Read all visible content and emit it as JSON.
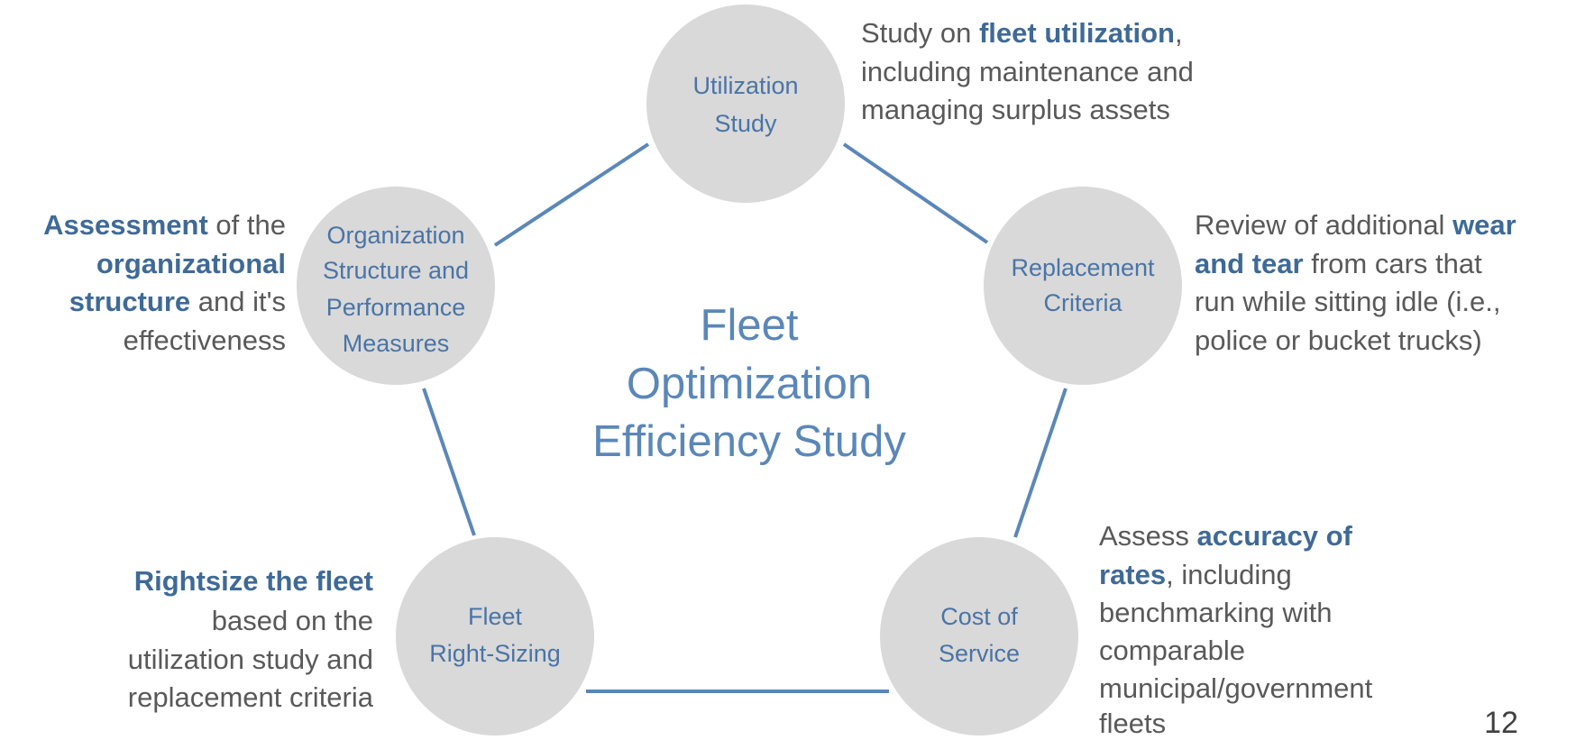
{
  "center_title": [
    "Fleet",
    "Optimization",
    "Efficiency Study"
  ],
  "nodes": [
    {
      "label": [
        "Utilization",
        "Study"
      ],
      "description": [
        [
          {
            "text": "Study on "
          },
          {
            "text": "fleet utilization",
            "bold": true
          },
          {
            "text": ","
          }
        ],
        [
          {
            "text": "including maintenance and"
          }
        ],
        [
          {
            "text": "managing surplus assets"
          }
        ]
      ]
    },
    {
      "label": [
        "Replacement",
        "Criteria"
      ],
      "description": [
        [
          {
            "text": "Review of additional "
          },
          {
            "text": "wear",
            "bold": true
          }
        ],
        [
          {
            "text": "and tear",
            "bold": true
          },
          {
            "text": " from cars that"
          }
        ],
        [
          {
            "text": "run while sitting idle (i.e.,"
          }
        ],
        [
          {
            "text": "police or bucket trucks)"
          }
        ]
      ]
    },
    {
      "label": [
        "Cost of",
        "Service"
      ],
      "description": [
        [
          {
            "text": "Assess "
          },
          {
            "text": "accuracy of",
            "bold": true
          }
        ],
        [
          {
            "text": "rates",
            "bold": true
          },
          {
            "text": ", including"
          }
        ],
        [
          {
            "text": "benchmarking with"
          }
        ],
        [
          {
            "text": "comparable"
          }
        ],
        [
          {
            "text": "municipal/government"
          }
        ],
        [
          {
            "text": "fleets"
          }
        ]
      ]
    },
    {
      "label": [
        "Fleet",
        "Right-Sizing"
      ],
      "description": [
        [
          {
            "text": "Rightsize the fleet",
            "bold": true
          }
        ],
        [
          {
            "text": "based on the"
          }
        ],
        [
          {
            "text": "utilization study and"
          }
        ],
        [
          {
            "text": "replacement criteria"
          }
        ]
      ]
    },
    {
      "label": [
        "Organization",
        "Structure and",
        "Performance",
        "Measures"
      ],
      "description": [
        [
          {
            "text": "Assessment",
            "bold": true
          },
          {
            "text": " of the"
          }
        ],
        [
          {
            "text": "organizational",
            "bold": true
          }
        ],
        [
          {
            "text": "structure",
            "bold": true
          },
          {
            "text": " and it's"
          }
        ],
        [
          {
            "text": "effectiveness"
          }
        ]
      ]
    }
  ],
  "page_number": "12"
}
